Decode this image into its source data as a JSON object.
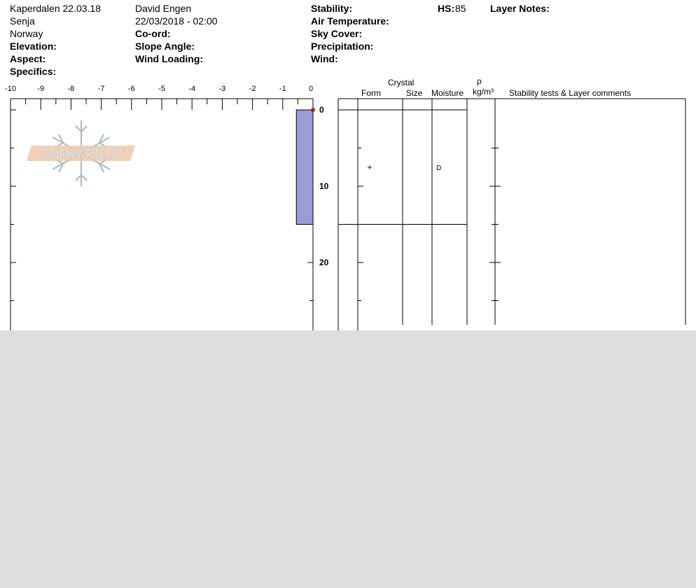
{
  "header": {
    "location": "Kaperdalen 22.03.18",
    "region": "Senja",
    "country": "Norway",
    "observer": "David Engen",
    "datetime": "22/03/2018 - 02:00",
    "labels": {
      "elevation": "Elevation:",
      "aspect": "Aspect:",
      "specifics": "Specifics:",
      "coord": "Co-ord:",
      "slope_angle": "Slope Angle:",
      "wind_loading": "Wind Loading:",
      "stability": "Stability:",
      "air_temperature": "Air Temperature:",
      "sky_cover": "Sky Cover:",
      "precipitation": "Precipitation:",
      "wind": "Wind:",
      "hs": "HS:",
      "layer_notes": "Layer Notes:"
    },
    "hs_value": "85"
  },
  "columns": {
    "crystal": "Crystal",
    "form": "Form",
    "size": "Size",
    "moisture": "Moisture",
    "rho": "ρ",
    "density_unit": "kg/m³",
    "stability_comments": "Stability tests & Layer comments"
  },
  "logo_text": "SNOW PILOT",
  "colors": {
    "hardness_fill": "#9b9bd6",
    "temp_marker": "#b22222",
    "logo_orange": "#f0c8a8",
    "logo_blue": "#a8b8c8"
  },
  "layers": [
    {
      "top": 0,
      "bottom": 15,
      "form": "+",
      "moisture": "D"
    }
  ],
  "chart_data": {
    "type": "bar",
    "title": "",
    "x_axis": {
      "ticks": [
        "-10",
        "-9",
        "-8",
        "-7",
        "-6",
        "-5",
        "-4",
        "-3",
        "-2",
        "-1",
        "0"
      ],
      "range": [
        -10,
        0
      ]
    },
    "y_axis": {
      "ticks": [
        "0",
        "10",
        "20"
      ],
      "range": [
        0,
        29
      ],
      "inverted": true
    },
    "hardness_layers": [
      {
        "top": 0,
        "bottom": 15,
        "value": -0.55
      }
    ],
    "temperature_points": [
      {
        "depth": 0,
        "temp": 0
      }
    ]
  }
}
